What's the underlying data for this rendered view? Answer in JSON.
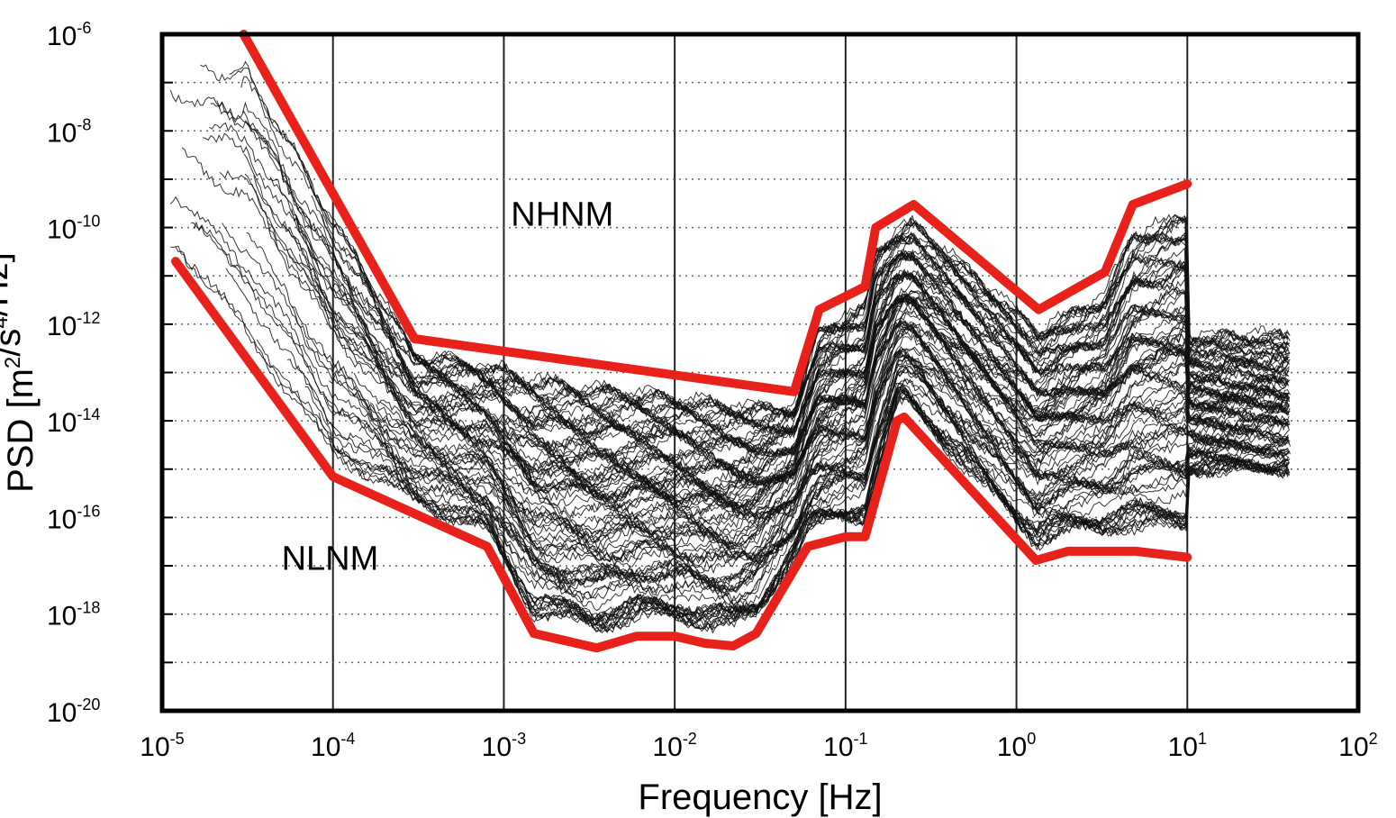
{
  "chart_data": {
    "type": "line",
    "title": "",
    "xlabel": "Frequency [Hz]",
    "ylabel": "PSD [m²/s⁴/Hz]",
    "xscale": "log",
    "yscale": "log",
    "xlim": [
      1e-05,
      100
    ],
    "ylim": [
      1e-20,
      1e-06
    ],
    "grid": true,
    "x_tick_labels": [
      {
        "base": "10",
        "exp": "-5"
      },
      {
        "base": "10",
        "exp": "-4"
      },
      {
        "base": "10",
        "exp": "-3"
      },
      {
        "base": "10",
        "exp": "-2"
      },
      {
        "base": "10",
        "exp": "-1"
      },
      {
        "base": "10",
        "exp": "0"
      },
      {
        "base": "10",
        "exp": "1"
      },
      {
        "base": "10",
        "exp": "2"
      }
    ],
    "y_tick_labels": [
      {
        "base": "10",
        "exp": "-6"
      },
      {
        "base": "10",
        "exp": "-8"
      },
      {
        "base": "10",
        "exp": "-10"
      },
      {
        "base": "10",
        "exp": "-12"
      },
      {
        "base": "10",
        "exp": "-14"
      },
      {
        "base": "10",
        "exp": "-16"
      },
      {
        "base": "10",
        "exp": "-18"
      },
      {
        "base": "10",
        "exp": "-20"
      }
    ],
    "annotations": [
      {
        "text": "NHNM",
        "x": 0.0011,
        "y": 2e-10
      },
      {
        "text": "NLNM",
        "x": 5e-05,
        "y": 1.5e-17
      }
    ],
    "series": [
      {
        "name": "NHNM",
        "color": "#e8211b",
        "x": [
          3e-05,
          0.0003,
          0.05,
          0.07,
          0.13,
          0.15,
          0.25,
          1.35,
          3.3,
          4.8,
          10
        ],
        "y": [
          1e-06,
          5e-13,
          4e-14,
          2e-12,
          6e-12,
          1e-10,
          3e-10,
          2e-12,
          1.2e-11,
          3e-10,
          8e-10
        ]
      },
      {
        "name": "NLNM",
        "color": "#e8211b",
        "x": [
          1.2e-05,
          0.0001,
          0.0008,
          0.0015,
          0.0035,
          0.006,
          0.01,
          0.015,
          0.022,
          0.03,
          0.06,
          0.1,
          0.13,
          0.2,
          0.22,
          1.3,
          2,
          3,
          5,
          10
        ],
        "y": [
          2e-11,
          7e-16,
          2.5e-17,
          4e-19,
          2e-19,
          3.5e-19,
          3.5e-19,
          2.5e-19,
          2.2e-19,
          4e-19,
          2.5e-17,
          4e-17,
          4e-17,
          1e-14,
          1.2e-14,
          1.3e-17,
          2e-17,
          2e-17,
          2e-17,
          1.5e-17
        ]
      }
    ]
  }
}
